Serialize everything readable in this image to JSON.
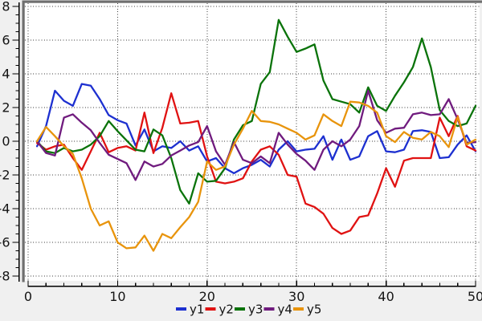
{
  "figure": {
    "background_color": "#f0f0f0",
    "plot_background_color": "#ffffff",
    "frame_color": "#6f6f6f",
    "axis_color": "#000000",
    "grid_color": "#3c3c3c",
    "tick_label_color": "#141414"
  },
  "chart_data": {
    "type": "line",
    "title": "",
    "xlabel": "",
    "ylabel": "",
    "x_start": 1,
    "x_step": 1,
    "xlim": [
      -0.4,
      50.45
    ],
    "ylim": [
      -8.25,
      8.25
    ],
    "x_major_ticks": [
      0,
      10,
      20,
      30,
      40,
      50
    ],
    "x_minor_tick_step": 2,
    "y_major_ticks": [
      -8,
      -6,
      -4,
      -2,
      0,
      2,
      4,
      6,
      8
    ],
    "y_minor_tick_step": 0.5,
    "grid": "dotted at major ticks, both axes",
    "legend_position": "bottom-center",
    "series": [
      {
        "name": "y1",
        "color": "#1d30d0",
        "values": [
          -0.3,
          0.9,
          3.0,
          2.4,
          2.1,
          3.4,
          3.3,
          2.5,
          1.55,
          1.25,
          1.05,
          -0.25,
          0.7,
          -0.6,
          -0.3,
          -0.4,
          0.0,
          -0.55,
          -0.3,
          -1.2,
          -1.0,
          -1.6,
          -1.9,
          -1.6,
          -1.4,
          -1.1,
          -1.5,
          -0.5,
          0.0,
          -0.6,
          -0.5,
          -0.45,
          0.3,
          -1.1,
          0.1,
          -1.1,
          -0.9,
          0.3,
          0.6,
          -0.6,
          -0.65,
          -0.5,
          0.6,
          0.65,
          0.55,
          -1.0,
          -0.95,
          -0.2,
          0.35,
          -0.6
        ]
      },
      {
        "name": "y2",
        "color": "#e01212",
        "values": [
          -0.1,
          -0.5,
          -0.3,
          -0.2,
          -1.0,
          -1.7,
          -0.6,
          0.5,
          -0.65,
          -0.4,
          -0.3,
          -0.55,
          1.7,
          -0.7,
          0.8,
          2.85,
          1.05,
          1.1,
          1.2,
          -0.9,
          -2.4,
          -2.5,
          -2.4,
          -2.2,
          -1.2,
          -0.5,
          -0.3,
          -0.8,
          -2.0,
          -2.1,
          -3.7,
          -3.9,
          -4.3,
          -5.15,
          -5.5,
          -5.3,
          -4.5,
          -4.4,
          -3.1,
          -1.6,
          -2.7,
          -1.15,
          -1.0,
          -1.0,
          -1.0,
          1.4,
          0.3,
          1.5,
          -0.3,
          -0.55
        ]
      },
      {
        "name": "y3",
        "color": "#0a730a",
        "values": [
          0.0,
          -0.6,
          -0.7,
          -0.4,
          -0.6,
          -0.5,
          -0.2,
          0.3,
          1.2,
          0.6,
          0.05,
          -0.5,
          -0.6,
          0.7,
          0.35,
          -1.0,
          -2.9,
          -3.7,
          -1.9,
          -2.4,
          -2.35,
          -1.6,
          0.1,
          0.95,
          1.2,
          3.4,
          4.1,
          7.2,
          6.2,
          5.3,
          5.5,
          5.75,
          3.6,
          2.5,
          2.35,
          2.2,
          1.7,
          3.2,
          2.1,
          1.8,
          2.7,
          3.5,
          4.4,
          6.1,
          4.4,
          1.85,
          1.2,
          0.9,
          1.05,
          2.1
        ]
      },
      {
        "name": "y4",
        "color": "#701b7e",
        "values": [
          0.0,
          -0.7,
          -0.85,
          1.4,
          1.6,
          1.1,
          0.65,
          -0.1,
          -0.8,
          -1.05,
          -1.3,
          -2.3,
          -1.2,
          -1.5,
          -1.35,
          -0.85,
          -0.55,
          -0.25,
          -0.05,
          0.9,
          -0.6,
          -1.4,
          -0.05,
          -1.1,
          -1.3,
          -0.9,
          -1.3,
          0.5,
          -0.2,
          -0.75,
          -1.15,
          -1.7,
          -0.5,
          0.0,
          -0.3,
          0.1,
          0.9,
          3.0,
          1.25,
          0.5,
          0.75,
          0.8,
          1.6,
          1.7,
          1.55,
          1.6,
          2.5,
          1.3,
          -0.1,
          -0.05
        ]
      },
      {
        "name": "y5",
        "color": "#e8940c",
        "values": [
          0.0,
          0.85,
          0.3,
          -0.3,
          -0.75,
          -2.2,
          -4.0,
          -5.0,
          -4.75,
          -6.0,
          -6.35,
          -6.3,
          -5.6,
          -6.5,
          -5.5,
          -5.75,
          -5.1,
          -4.5,
          -3.6,
          -1.2,
          -1.7,
          -1.5,
          -0.2,
          0.75,
          1.8,
          1.2,
          1.15,
          1.0,
          0.75,
          0.5,
          0.1,
          0.35,
          1.6,
          1.2,
          0.9,
          2.35,
          2.3,
          2.1,
          1.7,
          0.3,
          -0.05,
          0.55,
          0.2,
          0.1,
          0.55,
          0.3,
          -0.35,
          1.45,
          -0.2,
          0.1
        ]
      }
    ],
    "legend_labels": [
      "y1",
      "y2",
      "y3",
      "y4",
      "y5"
    ]
  }
}
